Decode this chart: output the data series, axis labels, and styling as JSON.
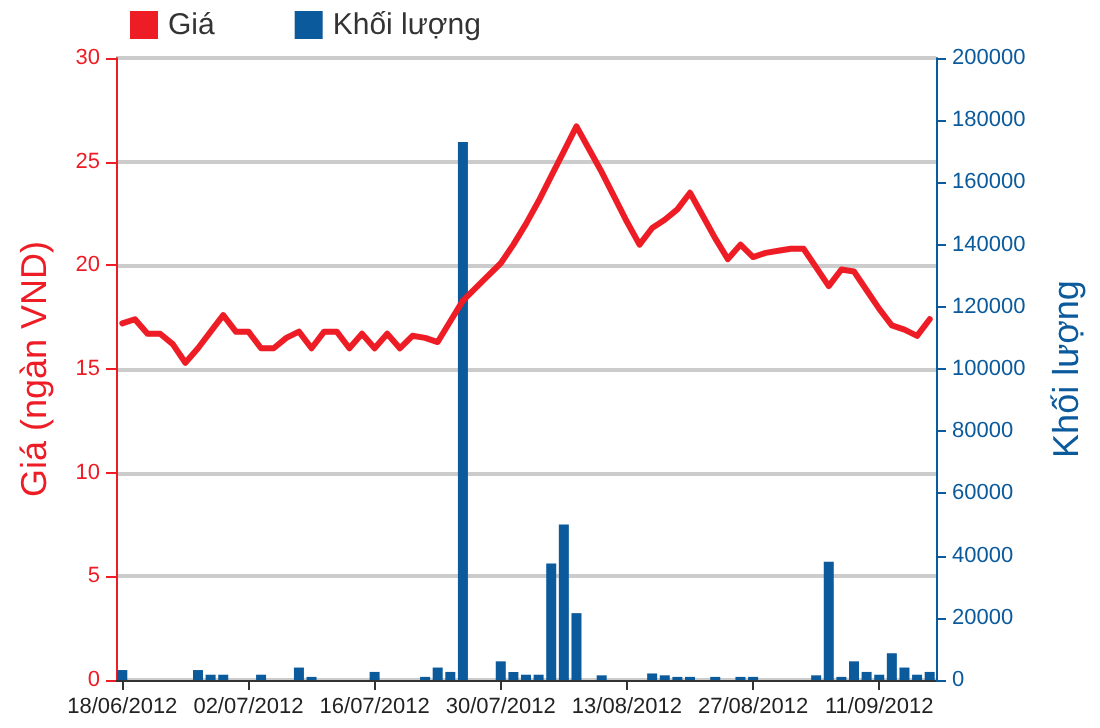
{
  "chart_data": {
    "type": "line",
    "ylabel": "Giá (ngàn VND)",
    "y2label": "Khối lượng",
    "categories": [
      "18/06/2012",
      null,
      null,
      null,
      null,
      null,
      null,
      null,
      null,
      null,
      "02/07/2012",
      null,
      null,
      null,
      null,
      null,
      null,
      null,
      null,
      null,
      "16/07/2012",
      null,
      null,
      null,
      null,
      null,
      null,
      null,
      null,
      null,
      "30/07/2012",
      null,
      null,
      null,
      null,
      null,
      null,
      null,
      null,
      null,
      "13/08/2012",
      null,
      null,
      null,
      null,
      null,
      null,
      null,
      null,
      null,
      "27/08/2012",
      null,
      null,
      null,
      null,
      null,
      null,
      null,
      null,
      null,
      "11/09/2012",
      null,
      null,
      null,
      null
    ],
    "series": [
      {
        "name": "Giá",
        "color": "#ee1c25",
        "values": [
          17.2,
          17.4,
          16.7,
          16.7,
          16.2,
          15.3,
          16.0,
          16.8,
          17.6,
          16.8,
          16.8,
          16.0,
          16.0,
          16.5,
          16.8,
          16.0,
          16.8,
          16.8,
          16.0,
          16.7,
          16.0,
          16.7,
          16.0,
          16.6,
          16.5,
          16.3,
          17.3,
          18.3,
          18.9,
          19.5,
          20.1,
          21.0,
          22.0,
          23.1,
          24.3,
          25.5,
          26.7,
          25.6,
          24.5,
          23.3,
          22.1,
          21.0,
          21.8,
          22.2,
          22.7,
          23.5,
          22.4,
          21.3,
          20.3,
          21.0,
          20.4,
          20.6,
          20.7,
          20.8,
          20.8,
          19.9,
          19.0,
          19.8,
          19.7,
          18.8,
          17.9,
          17.1,
          16.9,
          16.6,
          17.4
        ]
      },
      {
        "name": "Khối lượng",
        "type": "bar",
        "axis": "y2",
        "color": "#0a5a9c",
        "values": [
          3200,
          null,
          null,
          null,
          null,
          null,
          3200,
          1700,
          1700,
          null,
          null,
          1700,
          null,
          null,
          4000,
          1000,
          null,
          null,
          null,
          null,
          2600,
          null,
          null,
          null,
          1000,
          4000,
          2600,
          173000,
          null,
          null,
          6000,
          2600,
          1700,
          1700,
          37500,
          50000,
          21500,
          null,
          1500,
          null,
          null,
          null,
          2100,
          1500,
          1000,
          1000,
          null,
          1000,
          null,
          1000,
          1000,
          null,
          null,
          null,
          null,
          1500,
          38000,
          1000,
          6000,
          2600,
          1700,
          8600,
          4000,
          1700,
          2600
        ]
      }
    ],
    "ylim": [
      0,
      30
    ],
    "yticks": [
      0,
      5,
      10,
      15,
      20,
      25,
      30
    ],
    "y2lim": [
      0,
      200000
    ],
    "y2ticks": [
      0,
      20000,
      40000,
      60000,
      80000,
      100000,
      120000,
      140000,
      160000,
      180000,
      200000
    ],
    "grid": "y",
    "legend": "top left",
    "marker": "none",
    "line_style": "solid"
  }
}
